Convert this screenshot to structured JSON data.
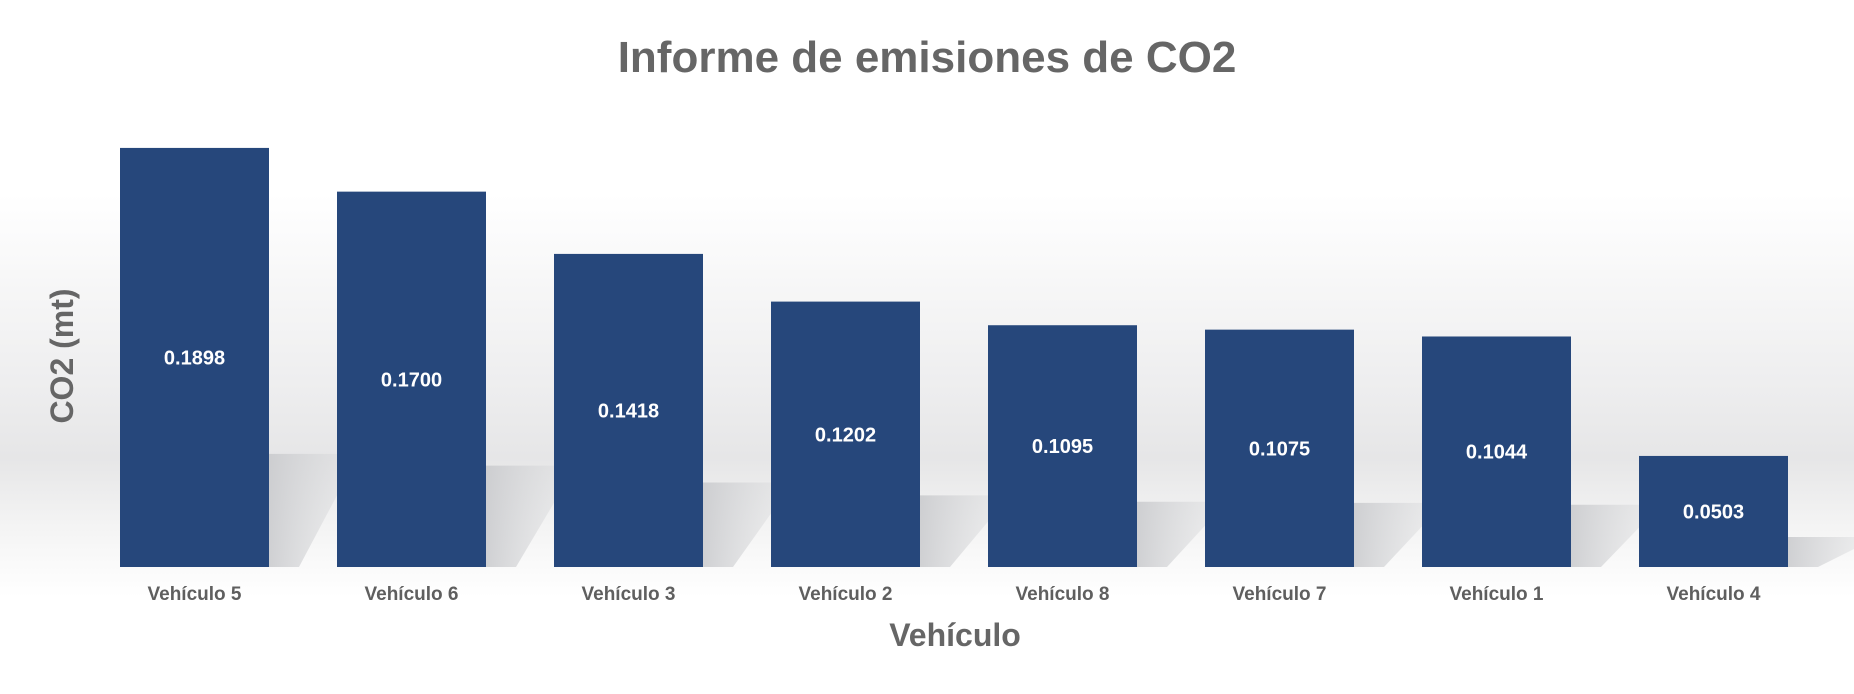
{
  "chart_data": {
    "type": "bar",
    "title": "Informe de emisiones de CO2",
    "xlabel": "Vehículo",
    "ylabel": "CO2 (mt)",
    "categories": [
      "Vehículo 5",
      "Vehículo 6",
      "Vehículo 3",
      "Vehículo 2",
      "Vehículo 8",
      "Vehículo 7",
      "Vehículo 1",
      "Vehículo 4"
    ],
    "values": [
      0.1898,
      0.17,
      0.1418,
      0.1202,
      0.1095,
      0.1075,
      0.1044,
      0.0503
    ],
    "value_labels": [
      "0.1898",
      "0.1700",
      "0.1418",
      "0.1202",
      "0.1095",
      "0.1075",
      "0.1044",
      "0.0503"
    ],
    "ylim": [
      0,
      0.2
    ],
    "grid": false,
    "legend": "none",
    "colors": {
      "bar": "#26477b",
      "text": "#666666",
      "label": "#ffffff"
    }
  }
}
